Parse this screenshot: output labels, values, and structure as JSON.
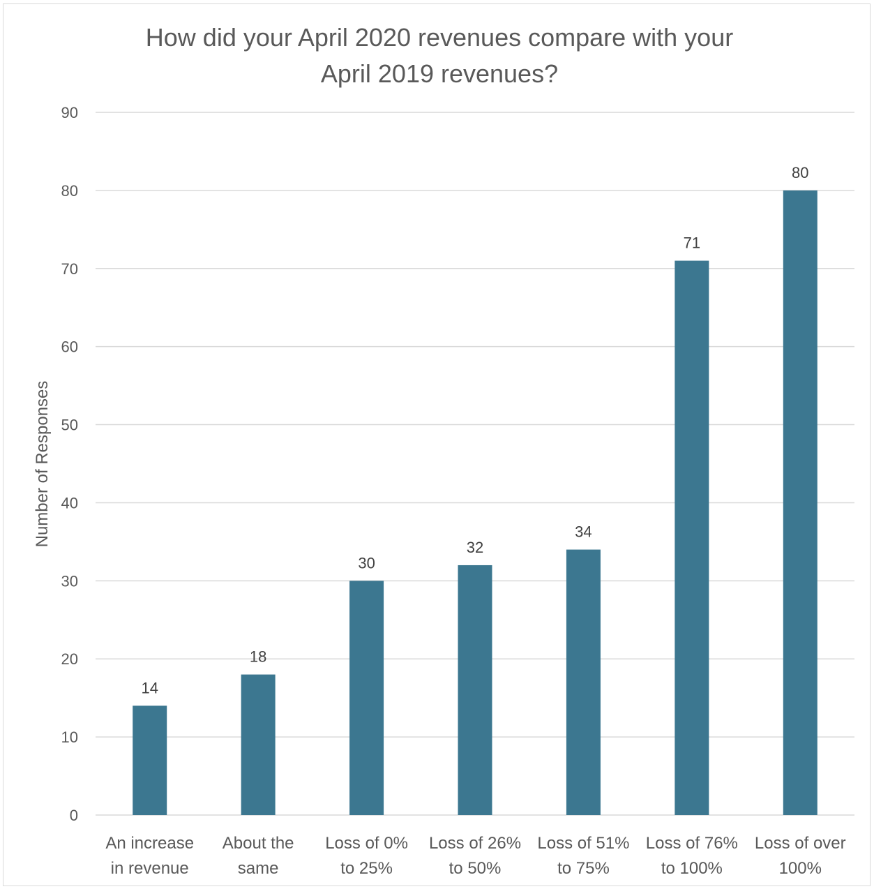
{
  "chart_data": {
    "type": "bar",
    "title": "How did your April 2020 revenues compare with your\nApril 2019 revenues?",
    "xlabel": "",
    "ylabel": "Number of Responses",
    "categories": [
      "An increase in revenue",
      "About the same",
      "Loss of 0% to 25%",
      "Loss of 26% to 50%",
      "Loss of 51% to 75%",
      "Loss of 76% to 100%",
      "Loss of over 100%"
    ],
    "category_lines": [
      [
        "An increase",
        "in revenue"
      ],
      [
        "About the",
        "same"
      ],
      [
        "Loss of 0%",
        "to 25%"
      ],
      [
        "Loss of 26%",
        "to 50%"
      ],
      [
        "Loss of 51%",
        "to 75%"
      ],
      [
        "Loss of 76%",
        "to 100%"
      ],
      [
        "Loss of over",
        "100%"
      ]
    ],
    "values": [
      14,
      18,
      30,
      32,
      34,
      71,
      80
    ],
    "ylim": [
      0,
      90
    ],
    "yticks": [
      0,
      10,
      20,
      30,
      40,
      50,
      60,
      70,
      80,
      90
    ],
    "grid": true,
    "legend": "none",
    "bar_color": "#3c7790",
    "grid_color": "#d9d9d9"
  }
}
